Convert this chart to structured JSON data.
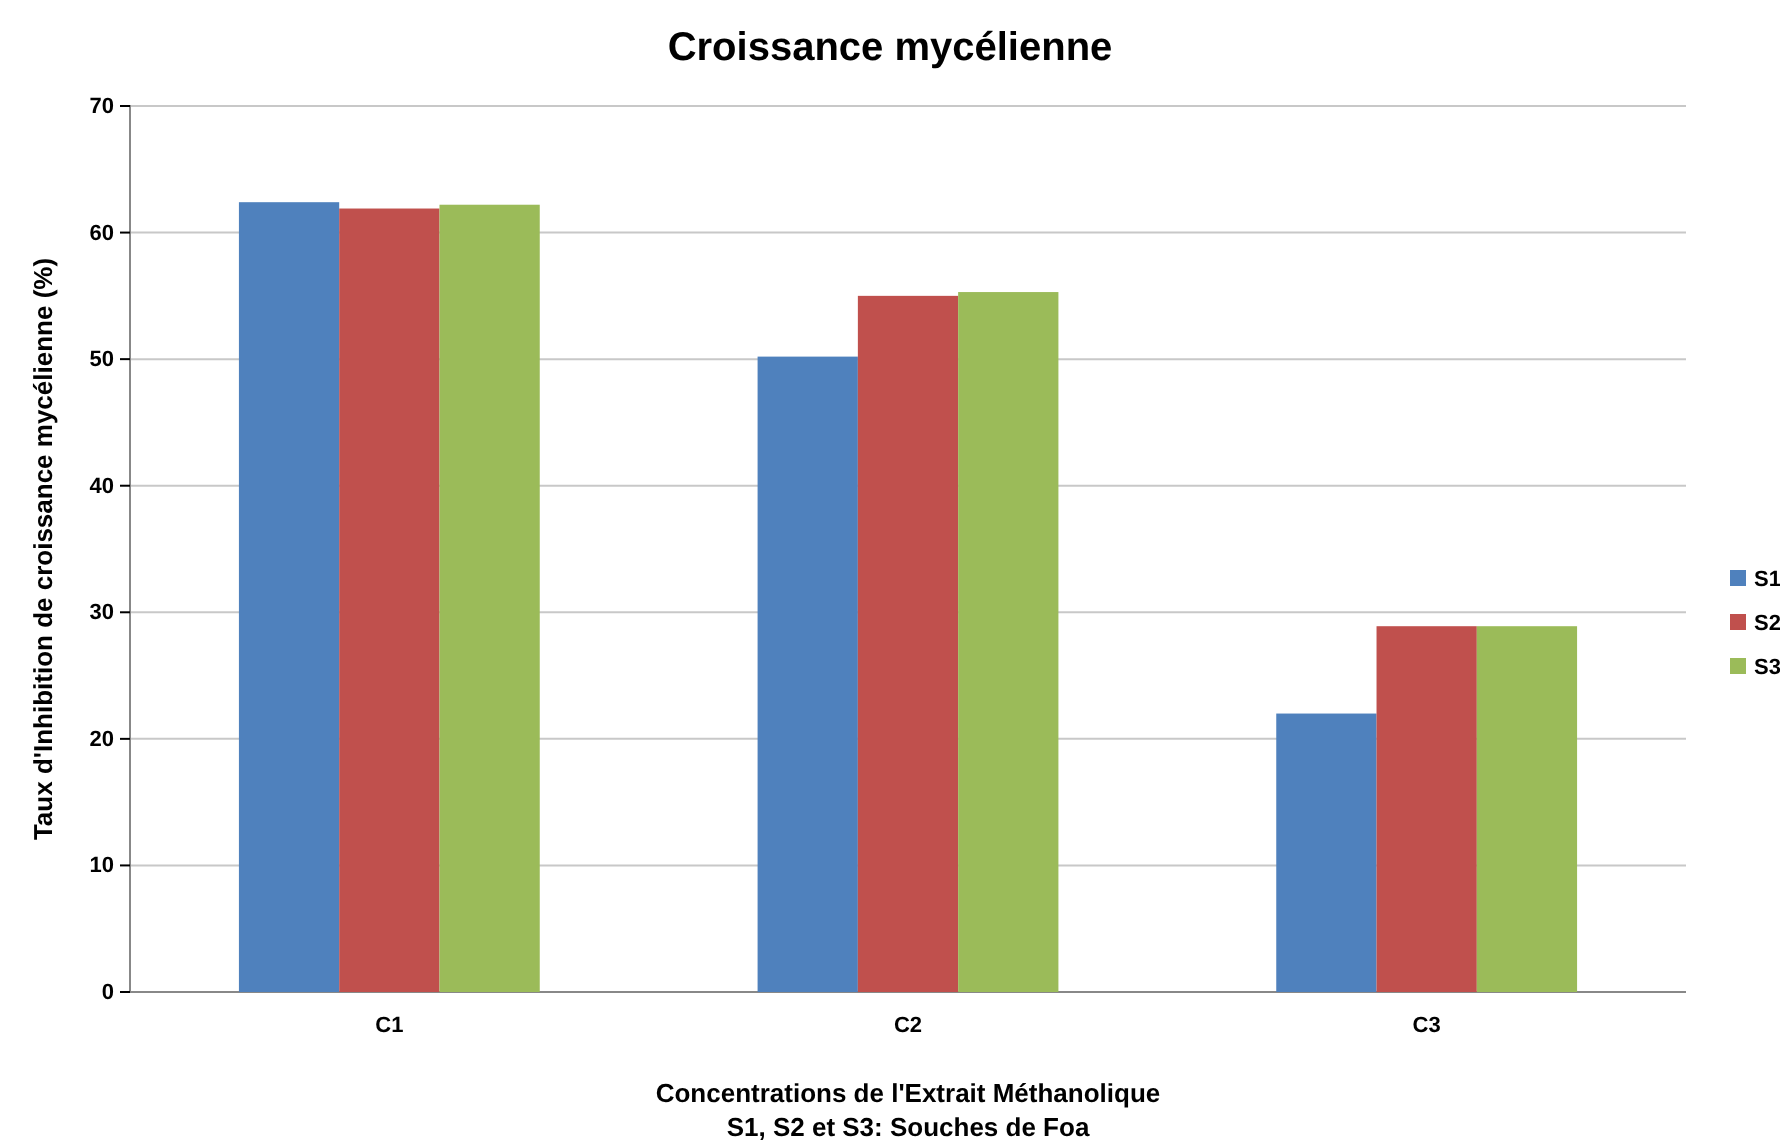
{
  "chart_data": {
    "type": "bar",
    "title": "Croissance mycélienne",
    "xlabel": "Concentrations de l'Extrait Méthanolique\nS1, S2 et S3: Souches de Foa",
    "ylabel": "Taux d'Inhibition de croissance mycélienne (%)",
    "categories": [
      "C1",
      "C2",
      "C3"
    ],
    "series": [
      {
        "name": "S1",
        "color": "#4f81bd",
        "values": [
          62.4,
          50.2,
          22
        ]
      },
      {
        "name": "S2",
        "color": "#c0504d",
        "values": [
          61.9,
          55,
          28.9
        ]
      },
      {
        "name": "S3",
        "color": "#9bbb59",
        "values": [
          62.2,
          55.3,
          28.9
        ]
      }
    ],
    "ylim": [
      0,
      70
    ],
    "yticks": [
      0,
      10,
      20,
      30,
      40,
      50,
      60,
      70
    ],
    "grid": "y",
    "legend": "right"
  }
}
